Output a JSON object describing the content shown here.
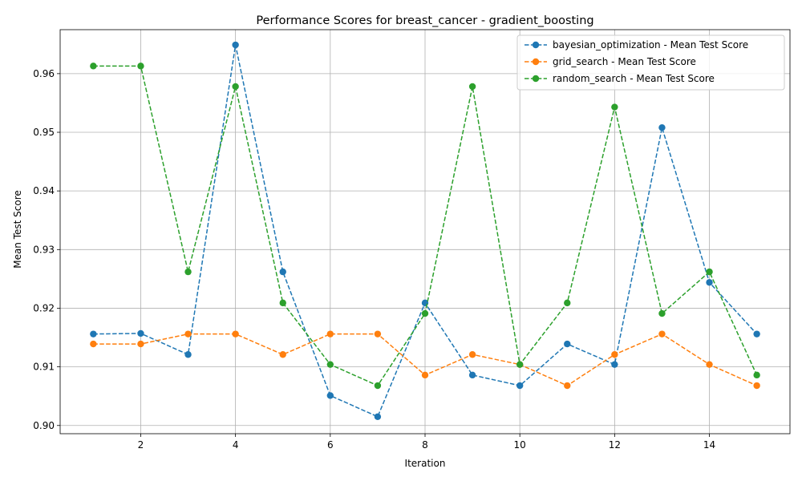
{
  "chart_data": {
    "type": "line",
    "title": "Performance Scores for breast_cancer - gradient_boosting",
    "xlabel": "Iteration",
    "ylabel": "Mean Test Score",
    "xlim": [
      0.3,
      15.7
    ],
    "ylim": [
      0.8986,
      0.9675
    ],
    "xticks": [
      2,
      4,
      6,
      8,
      10,
      12,
      14
    ],
    "yticks": [
      0.9,
      0.91,
      0.92,
      0.93,
      0.94,
      0.95,
      0.96
    ],
    "ytick_labels": [
      "0.90",
      "0.91",
      "0.92",
      "0.93",
      "0.94",
      "0.95",
      "0.96"
    ],
    "grid": true,
    "legend_position": "top-right",
    "x": [
      1,
      2,
      3,
      4,
      5,
      6,
      7,
      8,
      9,
      10,
      11,
      12,
      13,
      14,
      15
    ],
    "series": [
      {
        "name": "bayesian_optimization - Mean Test Score",
        "color": "#1f77b4",
        "values": [
          0.9156,
          0.9157,
          0.9121,
          0.9649,
          0.9262,
          0.9051,
          0.9015,
          0.9209,
          0.9086,
          0.9068,
          0.9139,
          0.9104,
          0.9508,
          0.9244,
          0.9156
        ]
      },
      {
        "name": "grid_search - Mean Test Score",
        "color": "#ff7f0e",
        "values": [
          0.9139,
          0.9139,
          0.9156,
          0.9156,
          0.9121,
          0.9156,
          0.9156,
          0.9086,
          0.9121,
          0.9104,
          0.9068,
          0.9121,
          0.9156,
          0.9104,
          0.9068
        ]
      },
      {
        "name": "random_search - Mean Test Score",
        "color": "#2ca02c",
        "values": [
          0.9613,
          0.9613,
          0.9262,
          0.9578,
          0.9209,
          0.9104,
          0.9068,
          0.9191,
          0.9578,
          0.9104,
          0.9209,
          0.9543,
          0.9191,
          0.9262,
          0.9086
        ]
      }
    ]
  }
}
